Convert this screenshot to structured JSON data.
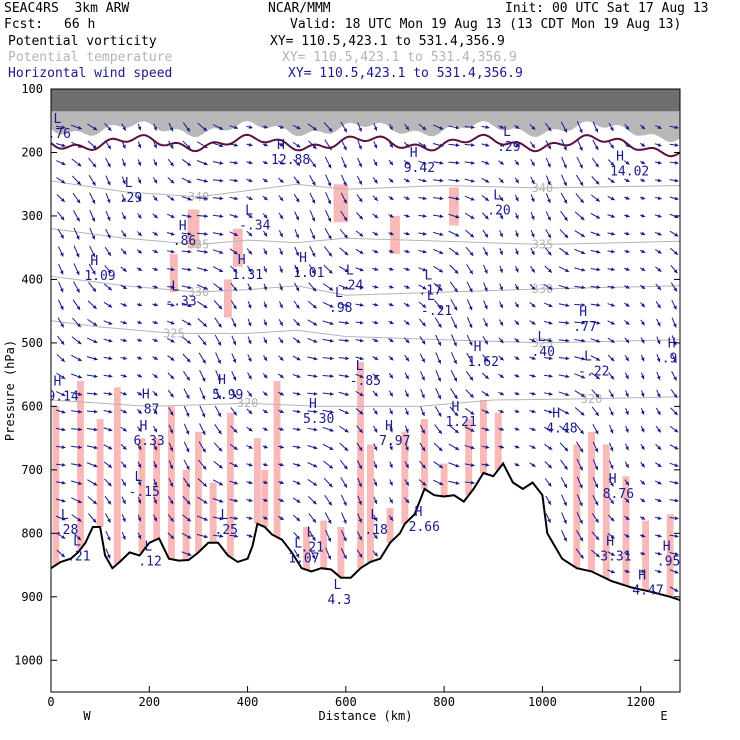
{
  "header": {
    "model": "SEAC4RS  3km ARW",
    "center": "NCAR/MMM",
    "init": "Init: 00 UTC Sat 17 Aug 13",
    "fcst_label": "Fcst:",
    "fcst_value": "66 h",
    "valid": "Valid: 18 UTC Mon 19 Aug 13 (13 CDT Mon 19 Aug 13)",
    "fields": [
      {
        "name": "Potential vorticity",
        "xy": "XY= 110.5,423.1 to 531.4,356.9",
        "color": "#000000"
      },
      {
        "name": "Potential temperature",
        "xy": "XY= 110.5,423.1 to 531.4,356.9",
        "color": "#b4b4b4"
      },
      {
        "name": "Horizontal wind speed",
        "xy": "XY= 110.5,423.1 to 531.4,356.9",
        "color": "#1a1a8c"
      }
    ]
  },
  "chart_data": {
    "type": "cross-section",
    "xlabel": "Distance (km)",
    "ylabel": "Pressure (hPa)",
    "xlim": [
      0,
      1280
    ],
    "ylim": [
      1050,
      100
    ],
    "x_ticks": [
      0,
      200,
      400,
      600,
      800,
      1000,
      1200
    ],
    "y_ticks": [
      100,
      200,
      300,
      400,
      500,
      600,
      700,
      800,
      900,
      1000
    ],
    "end_labels": {
      "left": "W",
      "right": "E"
    },
    "colors": {
      "terrain": "#000000",
      "theta": "#b4b4b4",
      "wind": "#1a1a8c",
      "pv_fill": "#f9b9b9",
      "tropopause": "#5a1040",
      "stratosphere": "#555555"
    },
    "terrain": [
      [
        0,
        855
      ],
      [
        20,
        845
      ],
      [
        40,
        840
      ],
      [
        55,
        830
      ],
      [
        70,
        815
      ],
      [
        85,
        790
      ],
      [
        100,
        790
      ],
      [
        110,
        835
      ],
      [
        125,
        855
      ],
      [
        140,
        845
      ],
      [
        160,
        830
      ],
      [
        180,
        835
      ],
      [
        200,
        815
      ],
      [
        220,
        808
      ],
      [
        240,
        840
      ],
      [
        260,
        843
      ],
      [
        280,
        842
      ],
      [
        300,
        830
      ],
      [
        320,
        815
      ],
      [
        340,
        815
      ],
      [
        360,
        835
      ],
      [
        380,
        845
      ],
      [
        400,
        840
      ],
      [
        410,
        820
      ],
      [
        420,
        785
      ],
      [
        435,
        790
      ],
      [
        450,
        802
      ],
      [
        470,
        810
      ],
      [
        490,
        830
      ],
      [
        510,
        855
      ],
      [
        530,
        860
      ],
      [
        550,
        855
      ],
      [
        570,
        857
      ],
      [
        590,
        870
      ],
      [
        610,
        870
      ],
      [
        630,
        855
      ],
      [
        650,
        845
      ],
      [
        670,
        840
      ],
      [
        690,
        815
      ],
      [
        710,
        800
      ],
      [
        720,
        785
      ],
      [
        740,
        770
      ],
      [
        760,
        730
      ],
      [
        780,
        740
      ],
      [
        800,
        742
      ],
      [
        820,
        740
      ],
      [
        840,
        750
      ],
      [
        860,
        730
      ],
      [
        880,
        705
      ],
      [
        900,
        710
      ],
      [
        920,
        690
      ],
      [
        940,
        720
      ],
      [
        960,
        730
      ],
      [
        980,
        720
      ],
      [
        1000,
        740
      ],
      [
        1010,
        800
      ],
      [
        1040,
        840
      ],
      [
        1070,
        855
      ],
      [
        1100,
        860
      ],
      [
        1140,
        875
      ],
      [
        1180,
        885
      ],
      [
        1220,
        892
      ],
      [
        1260,
        900
      ],
      [
        1280,
        905
      ]
    ],
    "theta_contours": [
      {
        "label": "340",
        "points": [
          [
            0,
            245
          ],
          [
            150,
            262
          ],
          [
            300,
            270
          ],
          [
            400,
            260
          ],
          [
            500,
            250
          ],
          [
            600,
            258
          ],
          [
            800,
            252
          ],
          [
            1000,
            256
          ],
          [
            1280,
            252
          ]
        ]
      },
      {
        "label": "335",
        "points": [
          [
            0,
            320
          ],
          [
            150,
            335
          ],
          [
            300,
            345
          ],
          [
            400,
            338
          ],
          [
            500,
            342
          ],
          [
            600,
            335
          ],
          [
            800,
            340
          ],
          [
            1000,
            345
          ],
          [
            1280,
            340
          ]
        ]
      },
      {
        "label": "330",
        "points": [
          [
            0,
            395
          ],
          [
            150,
            410
          ],
          [
            300,
            420
          ],
          [
            400,
            416
          ],
          [
            500,
            410
          ],
          [
            600,
            425
          ],
          [
            800,
            420
          ],
          [
            1000,
            415
          ],
          [
            1280,
            410
          ]
        ]
      },
      {
        "label": "325",
        "points": [
          [
            0,
            465
          ],
          [
            100,
            475
          ],
          [
            250,
            485
          ],
          [
            400,
            485
          ],
          [
            500,
            480
          ],
          [
            600,
            490
          ],
          [
            800,
            495
          ],
          [
            1000,
            500
          ],
          [
            1280,
            495
          ]
        ]
      },
      {
        "label": "320",
        "points": [
          [
            0,
            590
          ],
          [
            200,
            600
          ],
          [
            400,
            595
          ],
          [
            550,
            600
          ],
          [
            750,
            600
          ],
          [
            900,
            590
          ],
          [
            1100,
            588
          ],
          [
            1280,
            585
          ]
        ]
      }
    ],
    "labels": [
      {
        "type": "L",
        "value": ".76",
        "x": 5,
        "p": 166
      },
      {
        "type": "H",
        "value": "12.88",
        "x": 460,
        "p": 207
      },
      {
        "type": "H",
        "value": "9.42",
        "x": 730,
        "p": 220
      },
      {
        "type": "L",
        "value": ".29",
        "x": 920,
        "p": 187
      },
      {
        "type": "H",
        "value": "14.02",
        "x": 1150,
        "p": 225
      },
      {
        "type": "L",
        "value": ".29",
        "x": 150,
        "p": 267
      },
      {
        "type": "L",
        "value": ".20",
        "x": 900,
        "p": 287
      },
      {
        "type": "H",
        "value": ".86",
        "x": 260,
        "p": 335
      },
      {
        "type": "L",
        "value": "-.34",
        "x": 395,
        "p": 310
      },
      {
        "type": "H",
        "value": "1.09",
        "x": 80,
        "p": 390
      },
      {
        "type": "H",
        "value": "1.31",
        "x": 380,
        "p": 388
      },
      {
        "type": "H",
        "value": "1.01",
        "x": 505,
        "p": 385
      },
      {
        "type": "L",
        "value": ".24",
        "x": 600,
        "p": 405
      },
      {
        "type": "L",
        "value": ".17",
        "x": 760,
        "p": 413
      },
      {
        "type": "L",
        "value": "-.33",
        "x": 245,
        "p": 430
      },
      {
        "type": "L",
        "value": ".98",
        "x": 578,
        "p": 440
      },
      {
        "type": "L",
        "value": "-.21",
        "x": 765,
        "p": 445
      },
      {
        "type": "H",
        "value": ".77",
        "x": 1075,
        "p": 470
      },
      {
        "type": "H",
        "value": "1.62",
        "x": 860,
        "p": 525
      },
      {
        "type": "L",
        "value": ".40",
        "x": 990,
        "p": 510
      },
      {
        "type": "L",
        "value": "-.22",
        "x": 1085,
        "p": 540
      },
      {
        "type": "H",
        "value": ".9",
        "x": 1255,
        "p": 520
      },
      {
        "type": "H",
        "value": "9.14",
        "x": 5,
        "p": 580
      },
      {
        "type": "L",
        "value": "-.85",
        "x": 620,
        "p": 555
      },
      {
        "type": "H",
        "value": "5.99",
        "x": 340,
        "p": 577
      },
      {
        "type": "H",
        "value": ".87",
        "x": 185,
        "p": 600
      },
      {
        "type": "H",
        "value": "5.30",
        "x": 525,
        "p": 615
      },
      {
        "type": "H",
        "value": "1.21",
        "x": 815,
        "p": 620
      },
      {
        "type": "H",
        "value": "4.48",
        "x": 1020,
        "p": 630
      },
      {
        "type": "H",
        "value": "6.33",
        "x": 180,
        "p": 650
      },
      {
        "type": "H",
        "value": "7.97",
        "x": 680,
        "p": 650
      },
      {
        "type": "L",
        "value": "-.15",
        "x": 170,
        "p": 730
      },
      {
        "type": "H",
        "value": "8.76",
        "x": 1135,
        "p": 733
      },
      {
        "type": "L",
        "value": ".28",
        "x": 20,
        "p": 790
      },
      {
        "type": "L",
        "value": ".25",
        "x": 345,
        "p": 790
      },
      {
        "type": "H",
        "value": "2.66",
        "x": 740,
        "p": 785
      },
      {
        "type": "L",
        "value": ".18",
        "x": 650,
        "p": 790
      },
      {
        "type": "L",
        "value": ".21",
        "x": 45,
        "p": 832
      },
      {
        "type": "L",
        "value": ".21",
        "x": 520,
        "p": 818
      },
      {
        "type": "L",
        "value": ".12",
        "x": 190,
        "p": 840
      },
      {
        "type": "L",
        "value": "1.07",
        "x": 495,
        "p": 835
      },
      {
        "type": "H",
        "value": "3.31",
        "x": 1130,
        "p": 832
      },
      {
        "type": "H",
        "value": ".95",
        "x": 1245,
        "p": 840
      },
      {
        "type": "L",
        "value": "4.3",
        "x": 575,
        "p": 900
      },
      {
        "type": "H",
        "value": "4.47",
        "x": 1195,
        "p": 885
      }
    ]
  }
}
